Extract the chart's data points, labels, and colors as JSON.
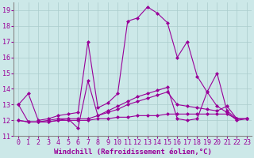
{
  "background_color": "#cce8e8",
  "grid_color": "#aacccc",
  "line_color": "#990099",
  "marker": "D",
  "markersize": 2.0,
  "linewidth": 0.8,
  "xlabel": "Windchill (Refroidissement éolien,°C)",
  "xlabel_fontsize": 6.5,
  "tick_fontsize": 6,
  "xlim": [
    -0.5,
    23.5
  ],
  "ylim": [
    11,
    19.5
  ],
  "yticks": [
    11,
    12,
    13,
    14,
    15,
    16,
    17,
    18,
    19
  ],
  "xticks": [
    0,
    1,
    2,
    3,
    4,
    5,
    6,
    7,
    8,
    9,
    10,
    11,
    12,
    13,
    14,
    15,
    16,
    17,
    18,
    19,
    20,
    21,
    22,
    23
  ],
  "series": [
    {
      "x": [
        0,
        1,
        2,
        3,
        4,
        5,
        6,
        7,
        8,
        9,
        10,
        11,
        12,
        13,
        14,
        15,
        16,
        17,
        18,
        19,
        20,
        21,
        22,
        23
      ],
      "y": [
        12.0,
        11.9,
        11.9,
        11.9,
        12.0,
        12.0,
        12.0,
        12.0,
        12.1,
        12.1,
        12.2,
        12.2,
        12.3,
        12.3,
        12.3,
        12.4,
        12.4,
        12.4,
        12.4,
        12.4,
        12.4,
        12.4,
        12.1,
        12.1
      ]
    },
    {
      "x": [
        0,
        1,
        2,
        3,
        4,
        5,
        6,
        7,
        8,
        9,
        10,
        11,
        12,
        13,
        14,
        15,
        16,
        17,
        18,
        19,
        20,
        21,
        22,
        23
      ],
      "y": [
        12.0,
        11.9,
        11.9,
        11.9,
        12.0,
        12.1,
        12.1,
        12.1,
        12.3,
        12.5,
        12.7,
        13.0,
        13.2,
        13.4,
        13.6,
        13.8,
        13.0,
        12.9,
        12.8,
        12.7,
        12.6,
        12.9,
        12.1,
        12.1
      ]
    },
    {
      "x": [
        0,
        1,
        2,
        3,
        4,
        5,
        6,
        7,
        8,
        9,
        10,
        11,
        12,
        13,
        14,
        15,
        16,
        17,
        18,
        19,
        20,
        21,
        22,
        23
      ],
      "y": [
        13.0,
        11.9,
        11.9,
        12.0,
        12.1,
        12.1,
        11.5,
        14.5,
        12.3,
        12.6,
        12.9,
        13.2,
        13.5,
        13.7,
        13.9,
        14.1,
        12.1,
        12.0,
        12.1,
        13.8,
        12.9,
        12.5,
        12.0,
        12.1
      ]
    },
    {
      "x": [
        0,
        1,
        2,
        3,
        4,
        5,
        6,
        7,
        8,
        9,
        10,
        11,
        12,
        13,
        14,
        15,
        16,
        17,
        18,
        19,
        20,
        21,
        22,
        23
      ],
      "y": [
        13.0,
        13.7,
        12.0,
        12.1,
        12.3,
        12.4,
        12.5,
        17.0,
        12.8,
        13.1,
        13.7,
        18.3,
        18.5,
        19.2,
        18.8,
        18.2,
        16.0,
        17.0,
        14.8,
        13.8,
        15.0,
        12.6,
        12.1,
        12.1
      ]
    }
  ]
}
